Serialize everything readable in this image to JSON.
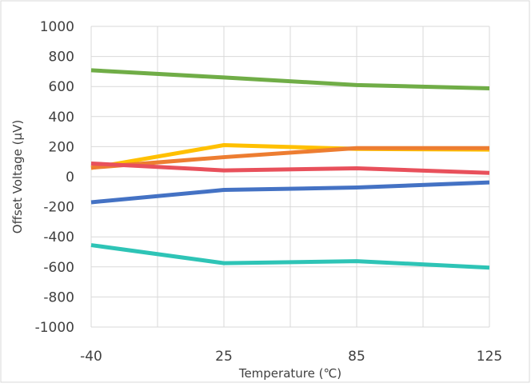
{
  "chart_data": {
    "type": "line",
    "title": "",
    "xlabel": "Temperature (℃)",
    "ylabel": "Offset Voltage (µV)",
    "x": [
      "-40",
      "25",
      "85",
      "125"
    ],
    "ylim": [
      -1000,
      1000
    ],
    "yticks": [
      "1000",
      "800",
      "600",
      "400",
      "200",
      "0",
      "-200",
      "-400",
      "-600",
      "-800",
      "-1000"
    ],
    "grid": true,
    "legend": "none",
    "series": [
      {
        "color": "#70AD47",
        "values": [
          708,
          660,
          610,
          588
        ]
      },
      {
        "color": "#FFC000",
        "values": [
          58,
          210,
          185,
          180
        ]
      },
      {
        "color": "#ED7D31",
        "values": [
          60,
          130,
          190,
          190
        ]
      },
      {
        "color": "#E8505B",
        "values": [
          88,
          42,
          56,
          25
        ]
      },
      {
        "color": "#4472C4",
        "values": [
          -170,
          -88,
          -72,
          -38
        ]
      },
      {
        "color": "#2EC4B6",
        "values": [
          -455,
          -575,
          -562,
          -605
        ]
      }
    ]
  }
}
